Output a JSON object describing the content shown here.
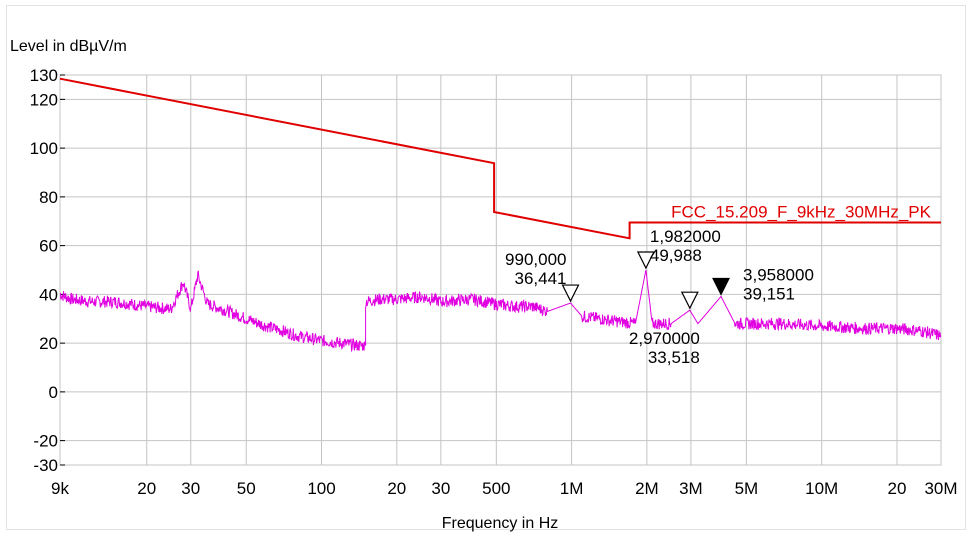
{
  "chart_data": {
    "type": "line",
    "ylabel": "Level in dBµV/m",
    "xlabel": "Frequency in Hz",
    "x_scale": "log",
    "xlim": [
      9000,
      30000000
    ],
    "ylim": [
      -30,
      130
    ],
    "x_ticks": [
      {
        "value": 9000,
        "label": "9k"
      },
      {
        "value": 20000,
        "label": "20"
      },
      {
        "value": 30000,
        "label": "30"
      },
      {
        "value": 50000,
        "label": "50"
      },
      {
        "value": 100000,
        "label": "100"
      },
      {
        "value": 200000,
        "label": "20"
      },
      {
        "value": 300000,
        "label": "30"
      },
      {
        "value": 500000,
        "label": "500"
      },
      {
        "value": 1000000,
        "label": "1M"
      },
      {
        "value": 2000000,
        "label": "2M"
      },
      {
        "value": 3000000,
        "label": "3M"
      },
      {
        "value": 5000000,
        "label": "5M"
      },
      {
        "value": 10000000,
        "label": "10M"
      },
      {
        "value": 20000000,
        "label": "20"
      },
      {
        "value": 30000000,
        "label": "30M"
      }
    ],
    "y_ticks": [
      {
        "value": 130,
        "label": "130"
      },
      {
        "value": 120,
        "label": "120"
      },
      {
        "value": 100,
        "label": "100"
      },
      {
        "value": 80,
        "label": "80"
      },
      {
        "value": 60,
        "label": "60"
      },
      {
        "value": 40,
        "label": "40"
      },
      {
        "value": 20,
        "label": "20"
      },
      {
        "value": 0,
        "label": "0"
      },
      {
        "value": -20,
        "label": "-20"
      },
      {
        "value": -30,
        "label": "-30"
      }
    ],
    "grid": true,
    "limit_line": {
      "name": "FCC_15.209_F_9kHz_30MHz_PK",
      "color": "#e00000",
      "x": [
        9000,
        490000,
        490000,
        1705000,
        1705000,
        30000000
      ],
      "y": [
        128.5,
        93.8,
        73.8,
        63,
        69.5,
        69.5
      ]
    },
    "series": [
      {
        "color": "#e000e0",
        "x": [
          9000,
          10000,
          12000,
          15000,
          20000,
          25000,
          28000,
          30000,
          32000,
          35000,
          40000,
          50000,
          60000,
          70000,
          80000,
          100000,
          120000,
          140000,
          150000,
          150000,
          170000,
          200000,
          250000,
          280000,
          300000,
          400000,
          500000,
          600000,
          700000,
          800000,
          990000,
          1100000,
          1300000,
          1500000,
          1800000,
          1982000,
          2100000,
          2500000,
          2970000,
          3200000,
          3958000,
          4500000,
          5000000,
          7000000,
          10000000,
          15000000,
          20000000,
          25000000,
          30000000
        ],
        "y": [
          40,
          38,
          37,
          37,
          35,
          34,
          45,
          34,
          48,
          36,
          34,
          30,
          27,
          25,
          23,
          21,
          20,
          19,
          19,
          37,
          38,
          38,
          39,
          38,
          37,
          38,
          36,
          35,
          35,
          33,
          36.441,
          31,
          30,
          29,
          28,
          49.988,
          28,
          28,
          33.518,
          28,
          39.151,
          28,
          28,
          28,
          27,
          26,
          26,
          25,
          23
        ]
      }
    ],
    "markers": [
      {
        "label": "990,000\n36,441",
        "filled": false,
        "x": 990000,
        "y": 36.441
      },
      {
        "label": "1,982000\n49,988",
        "filled": false,
        "x": 1982000,
        "y": 49.988
      },
      {
        "label": "2,970000\n33,518",
        "filled": false,
        "x": 2970000,
        "y": 33.518
      },
      {
        "label": "3,958000\n39,151",
        "filled": true,
        "x": 3958000,
        "y": 39.151
      }
    ]
  }
}
